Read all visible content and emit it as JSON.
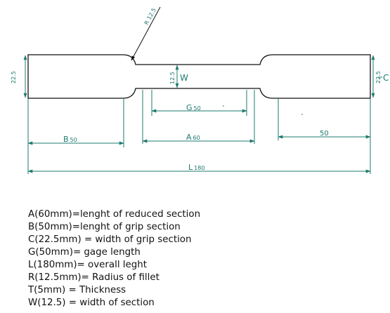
{
  "drawing": {
    "radius_label": "R",
    "radius_value": "12.5",
    "height_label_left": "22.5",
    "height_label_right": "22.5",
    "grip_label": "C",
    "w_value": "12.5",
    "w_label": "W",
    "g_label": "G",
    "g_value": "50",
    "a_label": "A",
    "a_value": "60",
    "b_label": "B",
    "b_value": "50",
    "right_grip_value": "50",
    "l_label": "L",
    "l_value": "180"
  },
  "legend": [
    "A(60mm)=lenght of reduced section",
    "B(50mm)=lenght of grip section",
    "C(22.5mm) = width of grip section",
    "G(50mm)= gage length",
    "L(180mm)= overall leght",
    "R(12.5mm)= Radius of fillet",
    "T(5mm) = Thickness",
    "W(12.5) = width of section"
  ]
}
